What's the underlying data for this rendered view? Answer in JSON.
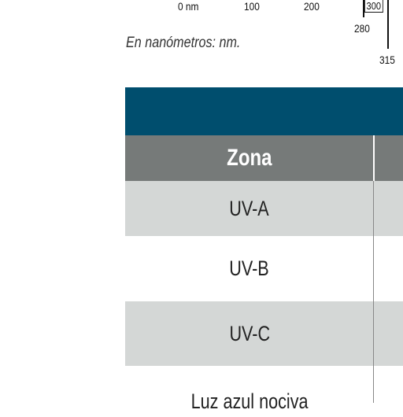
{
  "spectrum": {
    "labels": [
      "0 nm",
      "100",
      "200",
      "300",
      "280",
      "315"
    ],
    "caption": "En nanómetros: nm."
  },
  "table": {
    "header": [
      "Zona"
    ],
    "rows": [
      [
        "UV-A"
      ],
      [
        "UV-B"
      ],
      [
        "UV-C"
      ],
      [
        "Luz azul nociva"
      ]
    ]
  }
}
